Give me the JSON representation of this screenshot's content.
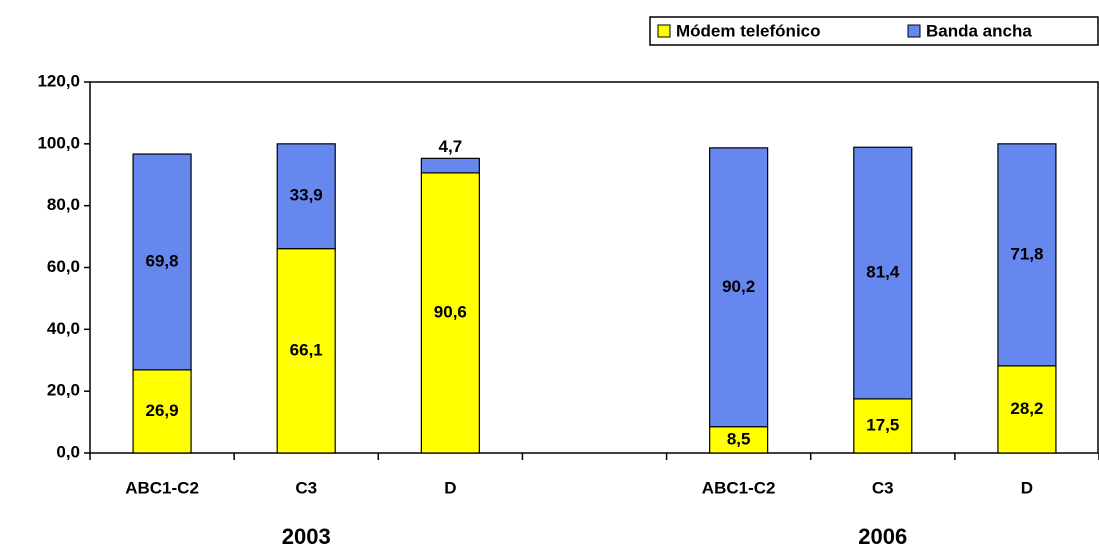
{
  "chart_data": {
    "type": "stacked_bar",
    "categories": [
      "ABC1-C2",
      "C3",
      "D",
      null,
      "ABC1-C2",
      "C3",
      "D"
    ],
    "groups": [
      "2003",
      "2006"
    ],
    "series": [
      {
        "name": "Módem telefónico",
        "color": "#ffff00",
        "values": [
          26.9,
          66.1,
          90.6,
          null,
          8.5,
          17.5,
          28.2
        ],
        "value_labels": [
          "26,9",
          "66,1",
          "90,6",
          null,
          "8,5",
          "17,5",
          "28,2"
        ]
      },
      {
        "name": "Banda ancha",
        "color": "#6688ee",
        "values": [
          69.8,
          33.9,
          4.7,
          null,
          90.2,
          81.4,
          71.8
        ],
        "value_labels": [
          "69,8",
          "33,9",
          "4,7",
          null,
          "90,2",
          "81,4",
          "71,8"
        ]
      }
    ],
    "ylim": [
      0,
      120
    ],
    "yticks": [
      {
        "value": 0,
        "label": "0,0"
      },
      {
        "value": 20,
        "label": "20,0"
      },
      {
        "value": 40,
        "label": "40,0"
      },
      {
        "value": 60,
        "label": "60,0"
      },
      {
        "value": 80,
        "label": "80,0"
      },
      {
        "value": 100,
        "label": "100,0"
      },
      {
        "value": 120,
        "label": "120,0"
      }
    ],
    "grid": false
  }
}
